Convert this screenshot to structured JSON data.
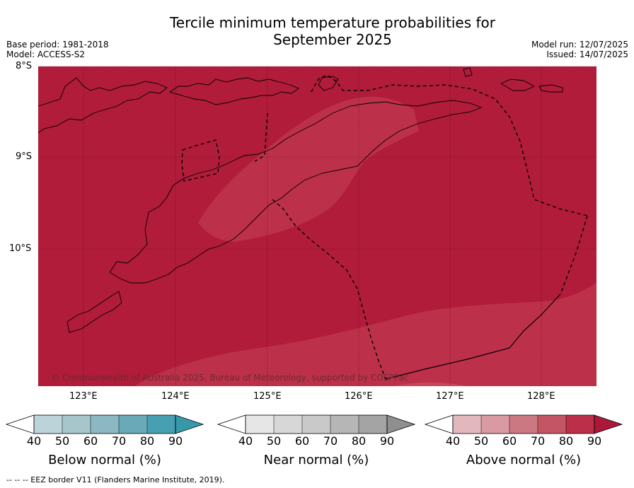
{
  "title_line1": "Tercile minimum temperature probabilities for",
  "title_line2": "September 2025",
  "meta_left": [
    "Base period: 1981-2018",
    "Model: ACCESS-S2"
  ],
  "meta_right": [
    "Model run: 12/07/2025",
    "Issued: 14/07/2025"
  ],
  "map": {
    "lat_labels": [
      "8°S",
      "9°S",
      "10°S"
    ],
    "lon_labels": [
      "123°E",
      "124°E",
      "125°E",
      "126°E",
      "127°E",
      "128°E"
    ],
    "extent": {
      "lon_min": 122.5,
      "lon_max": 128.6,
      "lat_min": -11.5,
      "lat_max": -8.0
    },
    "base_color": "#b01c3a",
    "lighter_color": "#bc3149",
    "lightest_color": "#c8475c",
    "copyright": "© Commonwealth of Australia 2025, Bureau of Meteorology, supported by COSPPac"
  },
  "colorbars": [
    {
      "name": "below",
      "title": "Below normal (%)",
      "ticks": [
        "40",
        "50",
        "60",
        "70",
        "80",
        "90"
      ],
      "colors": [
        "#ffffff",
        "#bdd3da",
        "#a6c6cc",
        "#8bb8c2",
        "#6aa9b7",
        "#47a0b2",
        "#3798aa"
      ]
    },
    {
      "name": "near",
      "title": "Near normal (%)",
      "ticks": [
        "40",
        "50",
        "60",
        "70",
        "80",
        "90"
      ],
      "colors": [
        "#ffffff",
        "#e6e6e6",
        "#d7d7d7",
        "#c9c9c9",
        "#b6b6b6",
        "#a4a4a4",
        "#8f8f8f"
      ]
    },
    {
      "name": "above",
      "title": "Above normal (%)",
      "ticks": [
        "40",
        "50",
        "60",
        "70",
        "80",
        "90"
      ],
      "colors": [
        "#ffffff",
        "#e2b7bd",
        "#d99aa3",
        "#cc7882",
        "#c45565",
        "#bb2f49",
        "#ad1838"
      ]
    }
  ],
  "footnote": "-- -- -- EEZ border V11 (Flanders Marine Institute, 2019)."
}
